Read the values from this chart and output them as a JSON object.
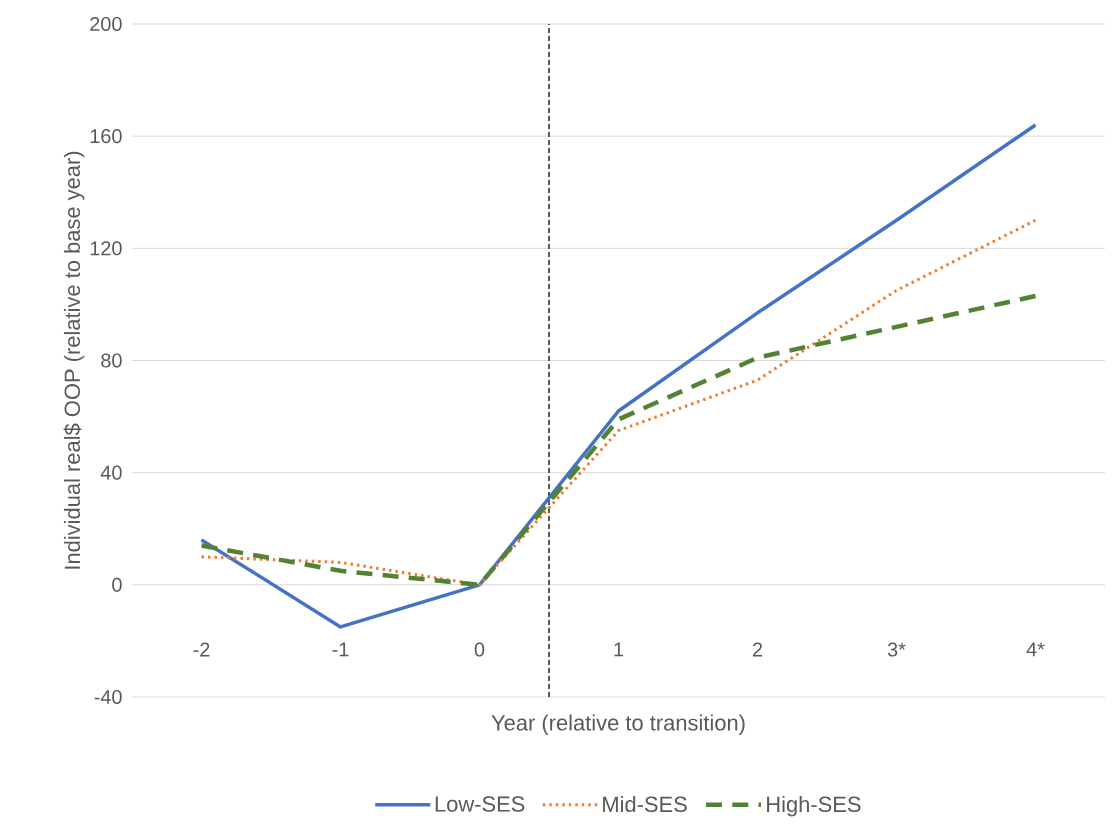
{
  "chart_data": {
    "type": "line",
    "xlabel": "Year (relative to transition)",
    "ylabel": "Individual real$ OOP (relative to base year)",
    "x": [
      -2,
      -1,
      0,
      1,
      2,
      3,
      4
    ],
    "xlim": [
      -2.5,
      4.5
    ],
    "xticks": [
      -2,
      -1,
      0,
      1,
      2,
      {
        "value": 3,
        "label": "3*"
      },
      {
        "value": 4,
        "label": "4*"
      }
    ],
    "ylim": [
      -40,
      200
    ],
    "yticks": [
      -40,
      0,
      40,
      80,
      120,
      160,
      200
    ],
    "series": [
      {
        "name": "Low-SES",
        "color": "#4472c4",
        "line_style": "solid",
        "values": [
          16,
          -15,
          0,
          62,
          97,
          130,
          164
        ]
      },
      {
        "name": "Mid-SES",
        "color": "#ed7d31",
        "line_style": "dotted",
        "values": [
          10,
          8,
          0,
          55,
          73,
          105,
          130
        ]
      },
      {
        "name": "High-SES",
        "color": "#548235",
        "line_style": "dashed",
        "values": [
          14,
          5,
          0,
          59,
          81,
          92,
          103
        ]
      }
    ],
    "ref_lines": [
      {
        "axis": "x",
        "value": 0.5,
        "color": "#595959",
        "line_style": "dashed"
      }
    ],
    "grid": "y",
    "legend": "bottom",
    "marker": "none"
  }
}
